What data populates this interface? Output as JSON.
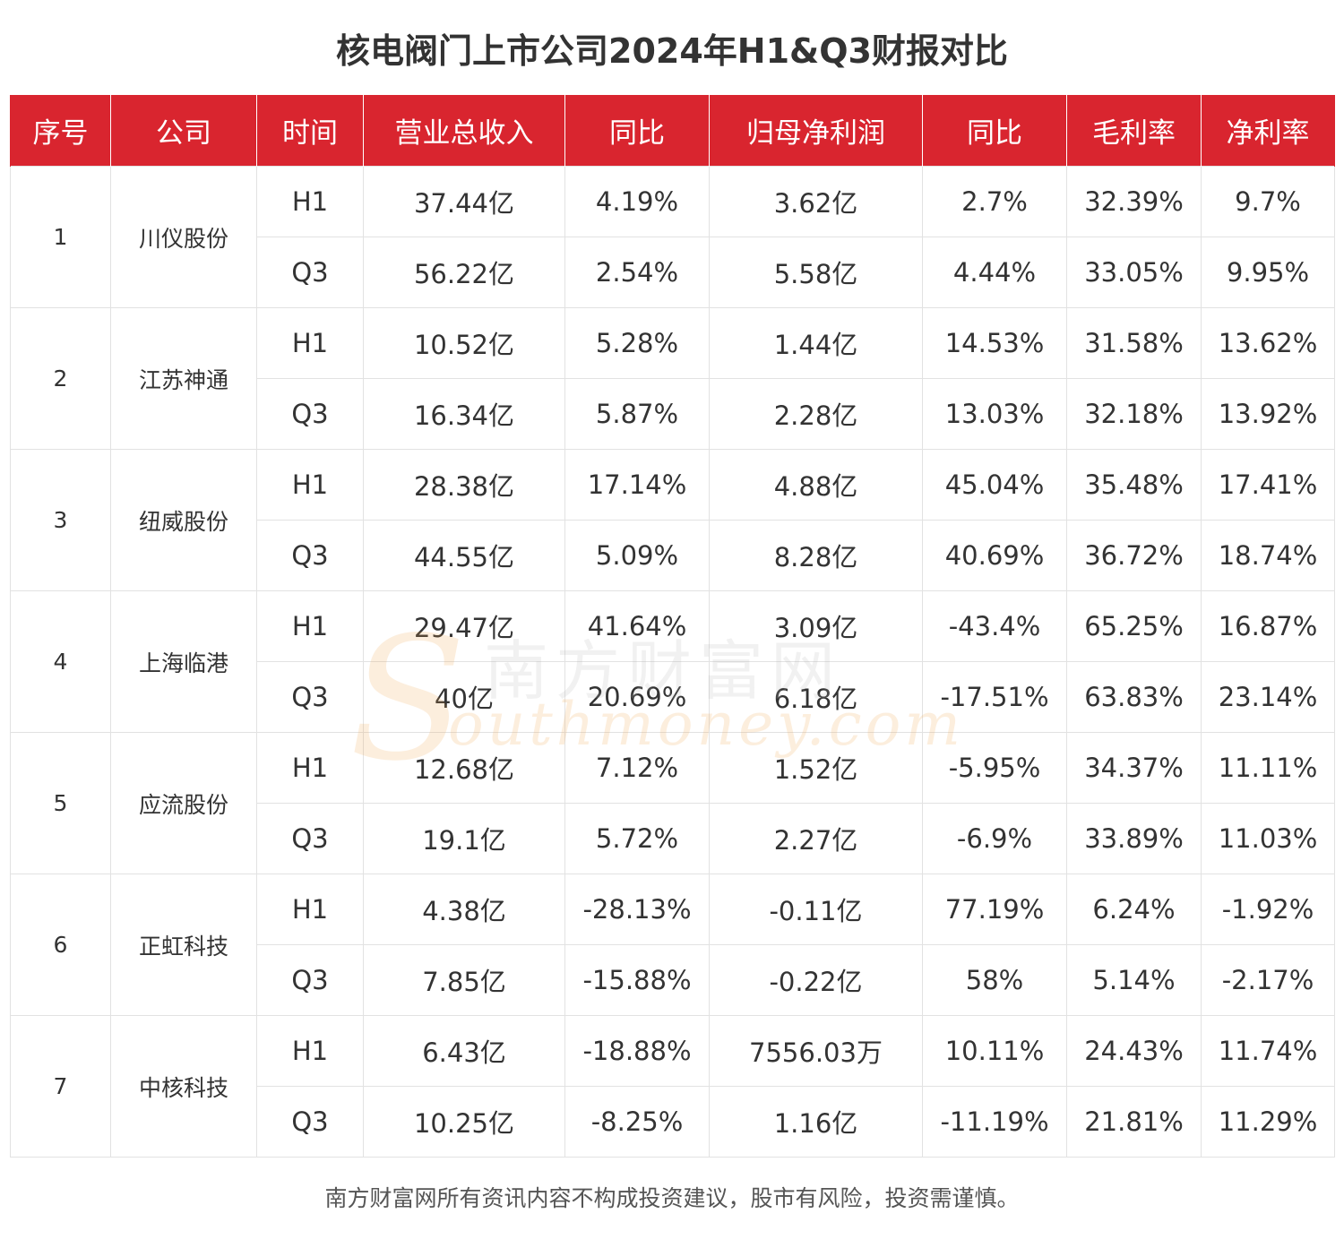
{
  "title": "核电阀门上市公司2024年H1&Q3财报对比",
  "headers": [
    "序号",
    "公司",
    "时间",
    "营业总收入",
    "同比",
    "归母净利润",
    "同比",
    "毛利率",
    "净利率"
  ],
  "rows": [
    {
      "idx": "1",
      "company": "川仪股份",
      "periods": [
        {
          "period": "H1",
          "revenue": "37.44亿",
          "rev_yoy": "4.19%",
          "net_profit": "3.62亿",
          "np_yoy": "2.7%",
          "gross_margin": "32.39%",
          "net_margin": "9.7%"
        },
        {
          "period": "Q3",
          "revenue": "56.22亿",
          "rev_yoy": "2.54%",
          "net_profit": "5.58亿",
          "np_yoy": "4.44%",
          "gross_margin": "33.05%",
          "net_margin": "9.95%"
        }
      ]
    },
    {
      "idx": "2",
      "company": "江苏神通",
      "periods": [
        {
          "period": "H1",
          "revenue": "10.52亿",
          "rev_yoy": "5.28%",
          "net_profit": "1.44亿",
          "np_yoy": "14.53%",
          "gross_margin": "31.58%",
          "net_margin": "13.62%"
        },
        {
          "period": "Q3",
          "revenue": "16.34亿",
          "rev_yoy": "5.87%",
          "net_profit": "2.28亿",
          "np_yoy": "13.03%",
          "gross_margin": "32.18%",
          "net_margin": "13.92%"
        }
      ]
    },
    {
      "idx": "3",
      "company": "纽威股份",
      "periods": [
        {
          "period": "H1",
          "revenue": "28.38亿",
          "rev_yoy": "17.14%",
          "net_profit": "4.88亿",
          "np_yoy": "45.04%",
          "gross_margin": "35.48%",
          "net_margin": "17.41%"
        },
        {
          "period": "Q3",
          "revenue": "44.55亿",
          "rev_yoy": "5.09%",
          "net_profit": "8.28亿",
          "np_yoy": "40.69%",
          "gross_margin": "36.72%",
          "net_margin": "18.74%"
        }
      ]
    },
    {
      "idx": "4",
      "company": "上海临港",
      "periods": [
        {
          "period": "H1",
          "revenue": "29.47亿",
          "rev_yoy": "41.64%",
          "net_profit": "3.09亿",
          "np_yoy": "-43.4%",
          "gross_margin": "65.25%",
          "net_margin": "16.87%"
        },
        {
          "period": "Q3",
          "revenue": "40亿",
          "rev_yoy": "20.69%",
          "net_profit": "6.18亿",
          "np_yoy": "-17.51%",
          "gross_margin": "63.83%",
          "net_margin": "23.14%"
        }
      ]
    },
    {
      "idx": "5",
      "company": "应流股份",
      "periods": [
        {
          "period": "H1",
          "revenue": "12.68亿",
          "rev_yoy": "7.12%",
          "net_profit": "1.52亿",
          "np_yoy": "-5.95%",
          "gross_margin": "34.37%",
          "net_margin": "11.11%"
        },
        {
          "period": "Q3",
          "revenue": "19.1亿",
          "rev_yoy": "5.72%",
          "net_profit": "2.27亿",
          "np_yoy": "-6.9%",
          "gross_margin": "33.89%",
          "net_margin": "11.03%"
        }
      ]
    },
    {
      "idx": "6",
      "company": "正虹科技",
      "periods": [
        {
          "period": "H1",
          "revenue": "4.38亿",
          "rev_yoy": "-28.13%",
          "net_profit": "-0.11亿",
          "np_yoy": "77.19%",
          "gross_margin": "6.24%",
          "net_margin": "-1.92%"
        },
        {
          "period": "Q3",
          "revenue": "7.85亿",
          "rev_yoy": "-15.88%",
          "net_profit": "-0.22亿",
          "np_yoy": "58%",
          "gross_margin": "5.14%",
          "net_margin": "-2.17%"
        }
      ]
    },
    {
      "idx": "7",
      "company": "中核科技",
      "periods": [
        {
          "period": "H1",
          "revenue": "6.43亿",
          "rev_yoy": "-18.88%",
          "net_profit": "7556.03万",
          "np_yoy": "10.11%",
          "gross_margin": "24.43%",
          "net_margin": "11.74%"
        },
        {
          "period": "Q3",
          "revenue": "10.25亿",
          "rev_yoy": "-8.25%",
          "net_profit": "1.16亿",
          "np_yoy": "-11.19%",
          "gross_margin": "21.81%",
          "net_margin": "11.29%"
        }
      ]
    }
  ],
  "watermark": {
    "cn": "南方财富网",
    "en": "outhmoney.com",
    "s": "S"
  },
  "footer": "南方财富网所有资讯内容不构成投资建议，股市有风险，投资需谨慎。",
  "colors": {
    "header_bg": "#d9252f",
    "header_text": "#ffffff",
    "grid": "#e2e2e2",
    "watermark_orange": "#f0a34a"
  }
}
